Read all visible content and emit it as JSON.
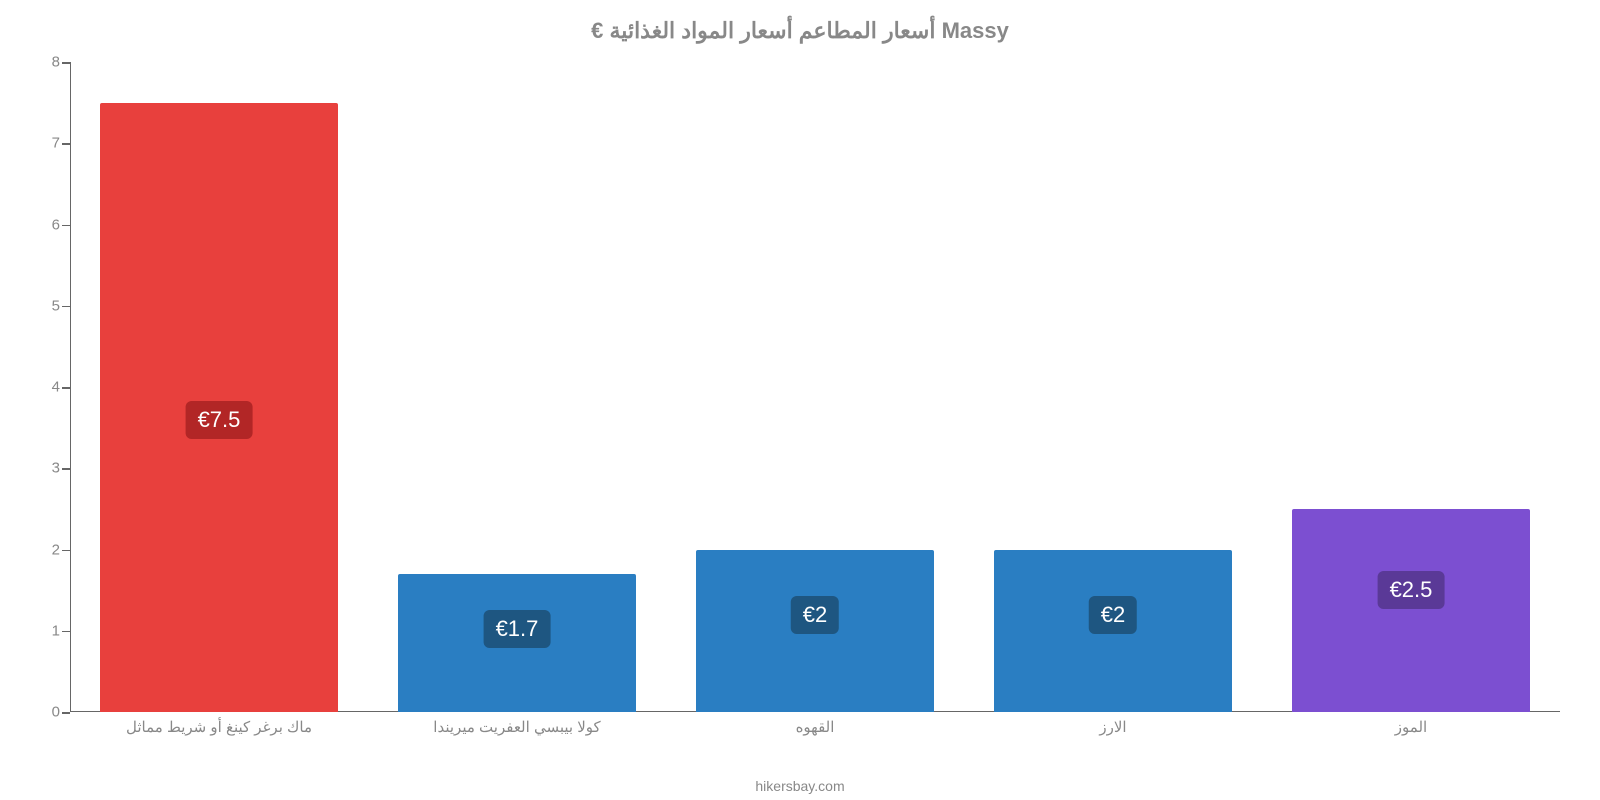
{
  "chart": {
    "type": "bar",
    "title": "€ أسعار المطاعم أسعار المواد الغذائية Massy",
    "title_fontsize": 22,
    "title_color": "#888888",
    "background_color": "#ffffff",
    "axis_color": "#666666",
    "tick_label_color": "#888888",
    "tick_fontsize": 15,
    "ylim": [
      0,
      8
    ],
    "ytick_step": 1,
    "yticks": [
      0,
      1,
      2,
      3,
      4,
      5,
      6,
      7,
      8
    ],
    "bar_width_rel": 0.8,
    "columns": 5,
    "categories": [
      "ماك برغر كينغ أو شريط مماثل",
      "كولا بيبسي العفريت ميريندا",
      "القهوه",
      "الارز",
      "الموز"
    ],
    "values": [
      7.5,
      1.7,
      2,
      2,
      2.5
    ],
    "value_labels": [
      "€7.5",
      "€1.7",
      "€2",
      "€2",
      "€2.5"
    ],
    "bar_colors": [
      "#e8403d",
      "#2a7ec2",
      "#2a7ec2",
      "#2a7ec2",
      "#7c4fd1"
    ],
    "badge_bg": {
      "red": "#b22626",
      "blue": "#1e5681",
      "purple": "#5a3997"
    },
    "badge_text_color": "#ffffff",
    "badge_fontsize": 22,
    "category_label_fontsize": 15,
    "category_label_color": "#888888",
    "footer": "hikersbay.com",
    "footer_color": "#888888",
    "footer_fontsize": 14
  }
}
